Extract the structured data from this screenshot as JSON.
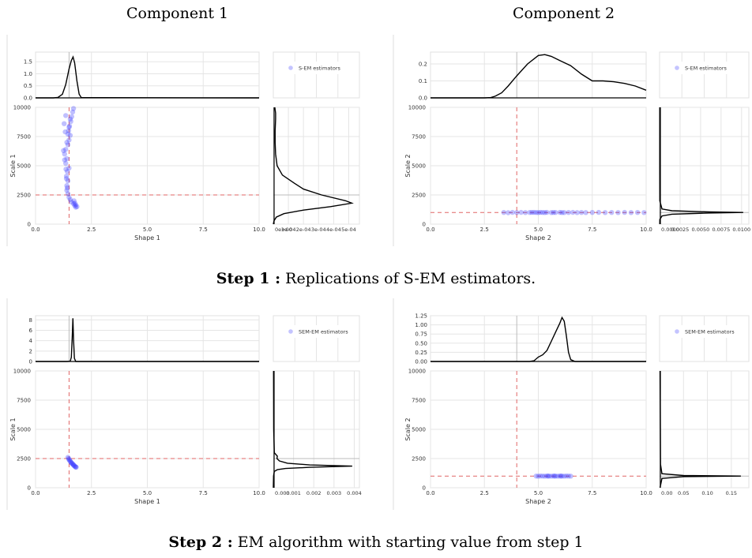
{
  "titles": {
    "component_1": "Component 1",
    "component_2": "Component 2"
  },
  "captions": {
    "step1_bold": "Step 1 :",
    "step1_text": "Replications of S-EM estimators.",
    "step2_bold": "Step 2 :",
    "step2_text": "EM algorithm with starting value from step 1"
  },
  "colors": {
    "points": "#3b3bff",
    "reference": "#e06666",
    "density": "#000000",
    "grid": "#e5e5e5"
  },
  "chart_data": [
    {
      "type": "scatter",
      "step": 1,
      "component": 1,
      "legend": "S-EM estimators",
      "xlabel": "Shape  1",
      "ylabel": "Scale  1",
      "xlim": [
        0,
        10
      ],
      "ylim": [
        0,
        10000
      ],
      "x_ticks": [
        "0.0",
        "2.5",
        "5.0",
        "7.5",
        "10.0"
      ],
      "y_ticks": [
        "0",
        "2500",
        "5000",
        "7500",
        "10000"
      ],
      "reference": {
        "x": 1.5,
        "y": 2500
      },
      "top_density": {
        "ylim": [
          0,
          1.9
        ],
        "y_ticks": [
          "0.0",
          "0.5",
          "1.0",
          "1.5"
        ],
        "x": [
          0,
          0.8,
          1.0,
          1.2,
          1.35,
          1.5,
          1.6,
          1.68,
          1.75,
          1.85,
          1.95,
          2.05,
          10
        ],
        "y": [
          0,
          0,
          0.02,
          0.15,
          0.55,
          1.2,
          1.55,
          1.7,
          1.45,
          0.7,
          0.15,
          0.01,
          0
        ]
      },
      "right_density": {
        "xlim": [
          0,
          0.00055
        ],
        "x_ticks": [
          "0e+00",
          "1e-04",
          "2e-04",
          "3e-04",
          "4e-04",
          "5e-04"
        ],
        "y": [
          10000,
          9500,
          9000,
          8000,
          7000,
          6000,
          5000,
          4200,
          3500,
          3000,
          2500,
          2000,
          1800,
          1500,
          1200,
          900,
          600,
          300,
          0
        ],
        "x": [
          1e-05,
          1.5e-05,
          1.5e-05,
          1.2e-05,
          1.2e-05,
          1.5e-05,
          2.5e-05,
          6e-05,
          0.00014,
          0.0002,
          0.00032,
          0.00048,
          0.00052,
          0.00038,
          0.0002,
          7e-05,
          2e-05,
          5e-06,
          0
        ]
      },
      "points": {
        "shape": [
          1.8,
          1.85,
          1.75,
          1.7,
          1.6,
          1.55,
          1.5,
          1.45,
          1.4,
          1.4,
          1.45,
          1.38,
          1.42,
          1.5,
          1.35,
          1.4,
          1.3,
          1.35,
          1.45,
          1.5,
          1.55,
          1.48,
          1.52,
          1.58,
          1.62,
          1.66,
          1.7,
          1.72,
          1.76,
          1.8,
          1.42,
          1.38,
          1.36,
          1.3,
          1.25,
          1.4,
          1.45,
          1.5,
          1.55,
          1.35,
          1.28,
          1.33
        ],
        "scale": [
          1450,
          1500,
          1600,
          1750,
          1900,
          2100,
          2300,
          2600,
          2900,
          3300,
          3700,
          4100,
          4500,
          4800,
          5200,
          5600,
          6000,
          6400,
          6800,
          7200,
          7600,
          8000,
          8400,
          8800,
          9200,
          9600,
          9900,
          2000,
          1800,
          1650,
          3100,
          3900,
          4700,
          5500,
          6300,
          7000,
          7700,
          8300,
          9000,
          9300,
          8600,
          7900
        ]
      }
    },
    {
      "type": "scatter",
      "step": 1,
      "component": 2,
      "legend": "S-EM estimators",
      "xlabel": "Shape  2",
      "ylabel": "Scale  2",
      "xlim": [
        0,
        10
      ],
      "ylim": [
        0,
        10000
      ],
      "x_ticks": [
        "0.0",
        "2.5",
        "5.0",
        "7.5",
        "10.0"
      ],
      "y_ticks": [
        "0",
        "2500",
        "5000",
        "7500",
        "10000"
      ],
      "reference": {
        "x": 4,
        "y": 1000
      },
      "top_density": {
        "ylim": [
          0,
          0.27
        ],
        "y_ticks": [
          "0.0",
          "0.1",
          "0.2"
        ],
        "x": [
          0,
          2.5,
          2.8,
          3.0,
          3.3,
          3.6,
          4.0,
          4.5,
          5.0,
          5.3,
          5.6,
          6.0,
          6.5,
          7.0,
          7.5,
          8.0,
          8.5,
          9.0,
          9.5,
          10.0
        ],
        "y": [
          0,
          0,
          0.002,
          0.01,
          0.03,
          0.07,
          0.13,
          0.2,
          0.25,
          0.255,
          0.245,
          0.22,
          0.19,
          0.14,
          0.1,
          0.1,
          0.095,
          0.085,
          0.07,
          0.045
        ]
      },
      "right_density": {
        "xlim": [
          0,
          0.0105
        ],
        "x_ticks": [
          "0.0000",
          "0.0025",
          "0.0050",
          "0.0075",
          "0.0100"
        ],
        "y": [
          10000,
          5000,
          2000,
          1300,
          1150,
          1050,
          1000,
          950,
          850,
          700,
          400,
          0
        ],
        "x": [
          2e-05,
          2e-05,
          3e-05,
          0.0003,
          0.0015,
          0.006,
          0.0102,
          0.006,
          0.0015,
          0.0003,
          3e-05,
          2e-05
        ]
      },
      "points": {
        "shape": [
          3.4,
          3.6,
          3.8,
          4.0,
          4.2,
          4.4,
          4.6,
          4.8,
          5.0,
          5.2,
          5.4,
          5.6,
          5.8,
          6.0,
          6.2,
          6.4,
          6.6,
          6.8,
          7.0,
          7.2,
          7.5,
          7.8,
          8.1,
          8.4,
          8.7,
          9.0,
          9.3,
          9.6,
          9.9,
          5.1,
          5.3,
          4.9,
          4.7,
          6.1,
          5.7
        ],
        "scale": [
          1000,
          980,
          1010,
          990,
          1005,
          995,
          1000,
          1010,
          990,
          1000,
          1005,
          995,
          1000,
          1010,
          990,
          1000,
          1005,
          995,
          1000,
          990,
          1000,
          1010,
          995,
          1000,
          990,
          1005,
          995,
          1000,
          990,
          1010,
          990,
          1000,
          1005,
          995,
          1000
        ]
      }
    },
    {
      "type": "scatter",
      "step": 2,
      "component": 1,
      "legend": "SEM-EM estimators",
      "xlabel": "Shape  1",
      "ylabel": "Scale  1",
      "xlim": [
        0,
        10
      ],
      "ylim": [
        0,
        10000
      ],
      "x_ticks": [
        "0.0",
        "2.5",
        "5.0",
        "7.5",
        "10.0"
      ],
      "y_ticks": [
        "0",
        "2500",
        "5000",
        "7500",
        "10000"
      ],
      "reference": {
        "x": 1.5,
        "y": 2500
      },
      "top_density": {
        "ylim": [
          0,
          8.8
        ],
        "y_ticks": [
          "0",
          "2",
          "4",
          "6",
          "8"
        ],
        "x": [
          0,
          1.4,
          1.55,
          1.6,
          1.64,
          1.67,
          1.7,
          1.74,
          1.8,
          10
        ],
        "y": [
          0,
          0,
          0.05,
          0.8,
          4.5,
          8.3,
          4.2,
          0.6,
          0,
          0
        ]
      },
      "right_density": {
        "xlim": [
          0,
          0.0041
        ],
        "x_ticks": [
          "0.000",
          "0.001",
          "0.002",
          "0.003",
          "0.004"
        ],
        "y": [
          10000,
          5000,
          3000,
          2700,
          2500,
          2300,
          2100,
          1950,
          1850,
          1750,
          1650,
          1550,
          1400,
          1000,
          0
        ],
        "x": [
          1e-05,
          2e-05,
          5e-05,
          0.0002,
          0.00018,
          0.0003,
          0.0007,
          0.0018,
          0.0039,
          0.0018,
          0.0006,
          0.0002,
          5e-05,
          1e-05,
          0
        ]
      },
      "points": {
        "shape": [
          1.45,
          1.48,
          1.5,
          1.52,
          1.55,
          1.58,
          1.6,
          1.62,
          1.65,
          1.68,
          1.7,
          1.72,
          1.75,
          1.78,
          1.8,
          1.82
        ],
        "scale": [
          2600,
          2500,
          2420,
          2350,
          2280,
          2200,
          2150,
          2100,
          2050,
          2000,
          1950,
          1900,
          1850,
          1800,
          1780,
          1760
        ]
      }
    },
    {
      "type": "scatter",
      "step": 2,
      "component": 2,
      "legend": "SEM-EM estimators",
      "xlabel": "Shape  2",
      "ylabel": "Scale  2",
      "xlim": [
        0,
        10
      ],
      "ylim": [
        0,
        10000
      ],
      "x_ticks": [
        "0.0",
        "2.5",
        "5.0",
        "7.5",
        "10.0"
      ],
      "y_ticks": [
        "0",
        "2500",
        "5000",
        "7500",
        "10000"
      ],
      "reference": {
        "x": 4,
        "y": 1000
      },
      "top_density": {
        "ylim": [
          0,
          1.25
        ],
        "y_ticks": [
          "0.00",
          "0.25",
          "0.50",
          "0.75",
          "1.00",
          "1.25"
        ],
        "x": [
          0,
          4.6,
          4.8,
          5.0,
          5.2,
          5.4,
          5.6,
          5.8,
          6.0,
          6.1,
          6.2,
          6.3,
          6.4,
          6.5,
          6.7,
          10
        ],
        "y": [
          0,
          0,
          0.02,
          0.12,
          0.18,
          0.3,
          0.55,
          0.8,
          1.05,
          1.2,
          1.1,
          0.7,
          0.25,
          0.05,
          0,
          0
        ]
      },
      "right_density": {
        "xlim": [
          0,
          0.18
        ],
        "x_ticks": [
          "0.00",
          "0.05",
          "0.10",
          "0.15"
        ],
        "y": [
          10000,
          2000,
          1200,
          1050,
          1000,
          950,
          800,
          0
        ],
        "x": [
          0.001,
          0.002,
          0.005,
          0.05,
          0.17,
          0.05,
          0.005,
          0.001
        ]
      },
      "points": {
        "shape": [
          4.9,
          5.0,
          5.1,
          5.2,
          5.3,
          5.4,
          5.5,
          5.6,
          5.7,
          5.8,
          5.9,
          6.0,
          6.1,
          6.2,
          6.3,
          6.4,
          6.5,
          5.45,
          5.75,
          6.05
        ],
        "scale": [
          1000,
          990,
          1010,
          1000,
          995,
          1005,
          1000,
          990,
          1010,
          1000,
          995,
          1005,
          1000,
          990,
          1010,
          1000,
          995,
          1000,
          1000,
          1000
        ]
      }
    }
  ]
}
